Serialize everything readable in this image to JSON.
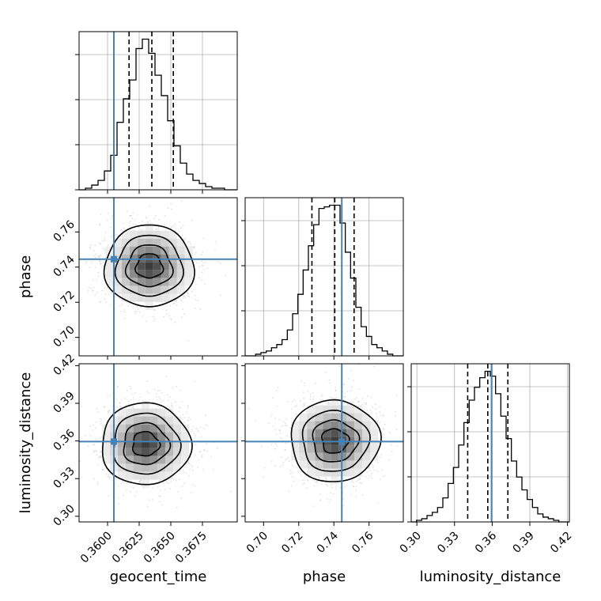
{
  "chart_data": {
    "type": "corner",
    "parameters": [
      {
        "name": "geocent_time",
        "truth": 0.3605,
        "range": [
          0.35775,
          0.37025
        ],
        "ticks": [
          "0.3600",
          "0.3625",
          "0.3650",
          "0.3675"
        ],
        "tick_values": [
          0.36,
          0.3625,
          0.365,
          0.3675
        ],
        "quantiles": [
          0.3617,
          0.3635,
          0.3652
        ]
      },
      {
        "name": "phase",
        "truth": 0.7445,
        "range": [
          0.6895,
          0.7795
        ],
        "ticks": [
          "0.70",
          "0.72",
          "0.74",
          "0.76"
        ],
        "tick_values": [
          0.7,
          0.72,
          0.74,
          0.76
        ],
        "quantiles": [
          0.7275,
          0.7405,
          0.7515
        ]
      },
      {
        "name": "luminosity_distance",
        "truth": 0.3595,
        "range": [
          0.2955,
          0.4215
        ],
        "ticks": [
          "0.30",
          "0.33",
          "0.36",
          "0.39",
          "0.42"
        ],
        "tick_values": [
          0.3,
          0.33,
          0.36,
          0.39,
          0.42
        ],
        "quantiles": [
          0.3405,
          0.3565,
          0.3725
        ]
      }
    ],
    "histograms": [
      {
        "param": "geocent_time",
        "bin_edges": [
          0.35775,
          0.35825,
          0.35875,
          0.35925,
          0.35975,
          0.36025,
          0.36075,
          0.36125,
          0.36175,
          0.36225,
          0.36275,
          0.36325,
          0.36375,
          0.36425,
          0.36475,
          0.36525,
          0.36575,
          0.36625,
          0.36675,
          0.36725,
          0.36775,
          0.36825,
          0.36875,
          0.36925,
          0.36975,
          0.37025
        ],
        "counts": [
          0,
          1,
          3,
          6,
          12,
          22,
          43,
          58,
          70,
          90,
          96,
          87,
          73,
          60,
          44,
          28,
          17,
          10,
          6,
          4,
          2,
          1,
          1,
          0,
          0
        ]
      },
      {
        "param": "phase",
        "bin_edges": [
          0.6895,
          0.6925,
          0.6955,
          0.6985,
          0.7015,
          0.7045,
          0.7075,
          0.7105,
          0.7135,
          0.7165,
          0.7195,
          0.7225,
          0.7255,
          0.7285,
          0.7315,
          0.7345,
          0.7375,
          0.7405,
          0.7435,
          0.7465,
          0.7495,
          0.7525,
          0.7555,
          0.7585,
          0.7615,
          0.7645,
          0.7675,
          0.7705,
          0.7735,
          0.7765,
          0.7795
        ],
        "counts": [
          0,
          0,
          1,
          2,
          3,
          5,
          7,
          10,
          16,
          26,
          38,
          53,
          68,
          81,
          91,
          92,
          93,
          93,
          82,
          64,
          48,
          30,
          18,
          12,
          7,
          5,
          3,
          1,
          0,
          0
        ]
      },
      {
        "param": "luminosity_distance",
        "bin_edges": [
          0.2955,
          0.2997,
          0.3039,
          0.3081,
          0.3123,
          0.3165,
          0.3207,
          0.3249,
          0.3291,
          0.3333,
          0.3375,
          0.3417,
          0.3459,
          0.3501,
          0.3543,
          0.3585,
          0.3627,
          0.3669,
          0.3711,
          0.3753,
          0.3795,
          0.3837,
          0.3879,
          0.3921,
          0.3963,
          0.4005,
          0.4047,
          0.4089,
          0.4131,
          0.4173,
          0.4215
        ],
        "counts": [
          0,
          1,
          2,
          4,
          6,
          9,
          15,
          24,
          34,
          48,
          62,
          76,
          84,
          90,
          94,
          91,
          80,
          66,
          52,
          38,
          28,
          20,
          14,
          9,
          5,
          3,
          2,
          1,
          0,
          0
        ]
      }
    ],
    "densities_2d": [
      {
        "x": "geocent_time",
        "y": "phase",
        "center": [
          0.3633,
          0.7405
        ]
      },
      {
        "x": "geocent_time",
        "y": "luminosity_distance",
        "center": [
          0.363,
          0.3575
        ]
      },
      {
        "x": "phase",
        "y": "luminosity_distance",
        "center": [
          0.7405,
          0.36
        ]
      }
    ],
    "grid": true,
    "truth_color": "#4682b4",
    "hist_color": "#000000",
    "scatter_color": "#808080"
  }
}
